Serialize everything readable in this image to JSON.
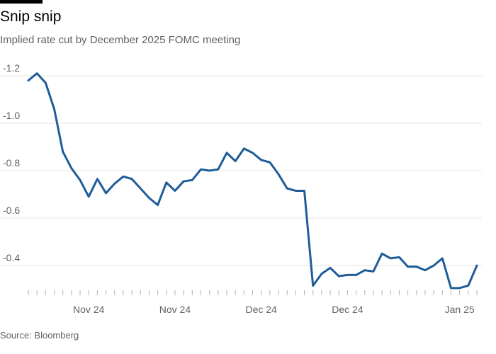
{
  "header": {
    "title": "Snip snip",
    "subtitle": "Implied rate cut by December 2025 FOMC meeting"
  },
  "footer": {
    "source": "Source: Bloomberg"
  },
  "colors": {
    "line": "#1f5c99",
    "grid": "#e8e6e3",
    "axis": "#b3b0ad",
    "text": "#66605c"
  },
  "chart_data": {
    "type": "line",
    "title": "Snip snip",
    "subtitle": "Implied rate cut by December 2025 FOMC meeting",
    "xlabel": "",
    "ylabel": "",
    "ylim": [
      -0.31,
      -1.25
    ],
    "inverted_y": true,
    "grid": true,
    "y_ticks": [
      {
        "value": -1.2,
        "label": "-1.2"
      },
      {
        "value": -1.0,
        "label": "-1.0"
      },
      {
        "value": -0.8,
        "label": "-0.8"
      },
      {
        "value": -0.6,
        "label": "-0.6"
      },
      {
        "value": -0.4,
        "label": "-0.4"
      }
    ],
    "x_labels": [
      {
        "index": 7,
        "label": "Nov 24"
      },
      {
        "index": 17,
        "label": "Nov 24"
      },
      {
        "index": 27,
        "label": "Dec 24"
      },
      {
        "index": 37,
        "label": "Dec 24"
      },
      {
        "index": 50,
        "label": "Jan 25"
      }
    ],
    "series": [
      {
        "values": [
          -1.18,
          -1.21,
          -1.17,
          -1.06,
          -0.88,
          -0.81,
          -0.76,
          -0.69,
          -0.765,
          -0.705,
          -0.745,
          -0.775,
          -0.765,
          -0.725,
          -0.685,
          -0.655,
          -0.75,
          -0.715,
          -0.755,
          -0.76,
          -0.805,
          -0.8,
          -0.805,
          -0.875,
          -0.84,
          -0.893,
          -0.875,
          -0.845,
          -0.835,
          -0.785,
          -0.725,
          -0.715,
          -0.715,
          -0.315,
          -0.365,
          -0.39,
          -0.355,
          -0.36,
          -0.36,
          -0.38,
          -0.375,
          -0.45,
          -0.43,
          -0.435,
          -0.395,
          -0.395,
          -0.38,
          -0.4,
          -0.43,
          -0.305,
          -0.305,
          -0.315,
          -0.4
        ]
      }
    ]
  }
}
